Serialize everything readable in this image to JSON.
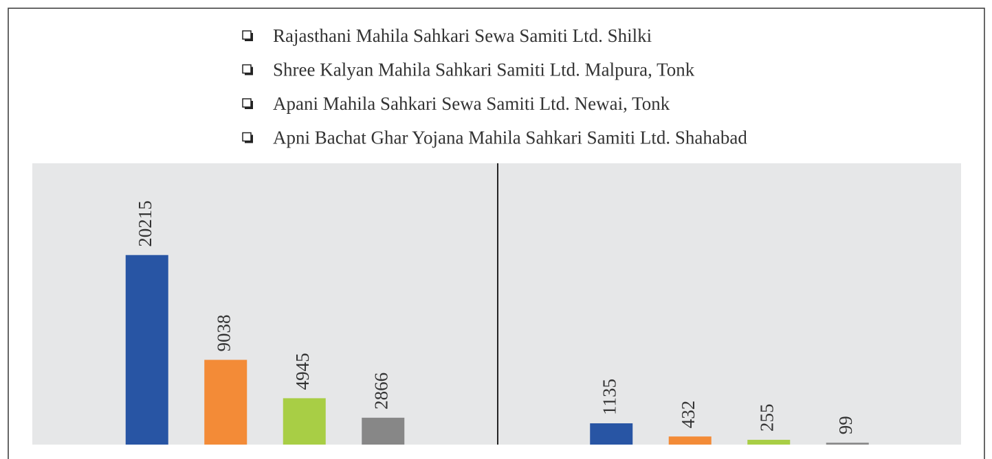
{
  "chart_data": [
    {
      "type": "bar",
      "categories": [
        null
      ],
      "series": [
        {
          "name": "Rajasthani Mahila Sahkari Sewa Samiti Ltd. Shilki",
          "color": "#2855a4",
          "values": [
            20215
          ]
        },
        {
          "name": "Shree Kalyan Mahila Sahkari Samiti Ltd. Malpura, Tonk",
          "color": "#f38b37",
          "values": [
            9038
          ]
        },
        {
          "name": "Apani Mahila Sahkari Sewa Samiti Ltd. Newai, Tonk",
          "color": "#a8ce45",
          "values": [
            4945
          ]
        },
        {
          "name": "Apni Bachat Ghar Yojana Mahila Sahkari Samiti Ltd. Shahabad",
          "color": "#878787",
          "values": [
            2866
          ]
        }
      ],
      "ylim": [
        0,
        30000
      ]
    },
    {
      "type": "bar",
      "categories": [
        null
      ],
      "series": [
        {
          "color": "#2855a4",
          "values": [
            1135
          ]
        },
        {
          "color": "#f38b37",
          "values": [
            432
          ]
        },
        {
          "color": "#a8ce45",
          "values": [
            255
          ]
        },
        {
          "color": "#878787",
          "values": [
            99
          ]
        }
      ],
      "ylim": [
        0,
        15000
      ]
    }
  ]
}
